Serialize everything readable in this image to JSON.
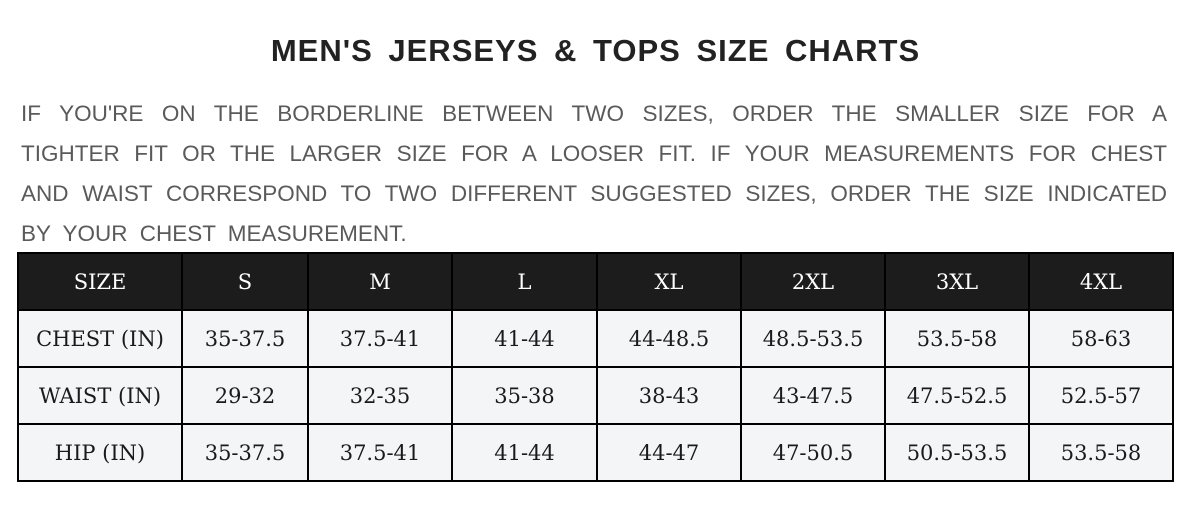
{
  "title": "MEN'S JERSEYS & TOPS SIZE CHARTS",
  "note_lines": [
    "IF YOU'RE ON THE BORDERLINE BETWEEN TWO SIZES, ORDER THE SMALLER SIZE FOR A",
    "TIGHTER FIT OR THE LARGER SIZE FOR A LOOSER FIT. IF YOUR MEASUREMENTS FOR CHEST",
    "AND WAIST CORRESPOND TO TWO DIFFERENT SUGGESTED SIZES, ORDER THE SIZE INDICATED",
    "BY YOUR CHEST MEASUREMENT."
  ],
  "table": {
    "header": [
      "SIZE",
      "S",
      "M",
      "L",
      "XL",
      "2XL",
      "3XL",
      "4XL"
    ],
    "rows": [
      [
        "CHEST (IN)",
        "35-37.5",
        "37.5-41",
        "41-44",
        "44-48.5",
        "48.5-53.5",
        "53.5-58",
        "58-63"
      ],
      [
        "WAIST (IN)",
        "29-32",
        "32-35",
        "35-38",
        "38-43",
        "43-47.5",
        "47.5-52.5",
        "52.5-57"
      ],
      [
        "HIP (IN)",
        "35-37.5",
        "37.5-41",
        "41-44",
        "44-47",
        "47-50.5",
        "50.5-53.5",
        "53.5-58"
      ]
    ]
  }
}
